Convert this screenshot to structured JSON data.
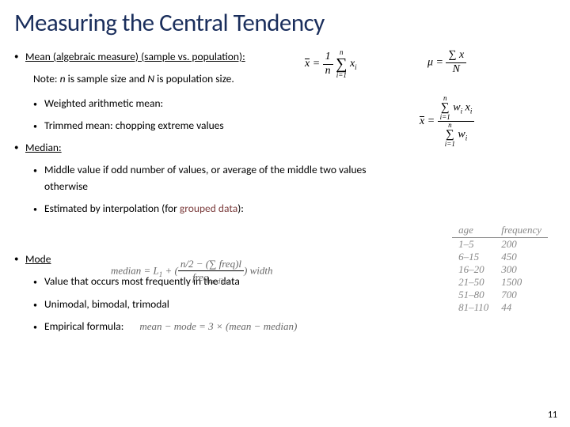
{
  "title": "Measuring the Central Tendency",
  "mean": {
    "heading": "Mean (algebraic measure) (sample vs. population):",
    "note_prefix": "Note: ",
    "note_n": "n",
    "note_mid": " is sample size and ",
    "note_N": "N",
    "note_end": " is population size.",
    "sub1": "Weighted arithmetic mean:",
    "sub2": "Trimmed mean: chopping extreme values"
  },
  "median": {
    "heading": "Median:",
    "sub1": "Middle value if odd number of values, or average of the middle two values otherwise",
    "sub2_a": "Estimated by interpolation (for ",
    "sub2_b": "grouped data",
    "sub2_c": "):"
  },
  "mode": {
    "heading": "Mode",
    "sub1": "Value that occurs most frequently in the data",
    "sub2": "Unimodal, bimodal, trimodal",
    "sub3": "Empirical formula:"
  },
  "formulas": {
    "sample_mean": {
      "lhs": "x",
      "eq": "=",
      "frac_num": "1",
      "frac_den": "n",
      "sum_top": "n",
      "sum_bot": "i=1",
      "term": "x",
      "term_sub": "i"
    },
    "pop_mean": {
      "lhs": "μ",
      "eq": "=",
      "sum_term": "x",
      "frac_den": "N"
    },
    "weighted": {
      "lhs": "x",
      "num_top": "n",
      "num_bot": "i=1",
      "num_term": "w",
      "num_sub": "i",
      "num_term2": "x",
      "num_sub2": "i",
      "den_top": "n",
      "den_bot": "i=1",
      "den_term": "w",
      "den_sub": "i"
    },
    "median_interp": "median = L₁ + ((n/2 − (∑ freq)l) / freq_median) width",
    "empirical": "mean − mode = 3 × (mean − median)"
  },
  "table": {
    "h1": "age",
    "h2": "frequency",
    "rows": [
      [
        "1–5",
        "200"
      ],
      [
        "6–15",
        "450"
      ],
      [
        "16–20",
        "300"
      ],
      [
        "21–50",
        "1500"
      ],
      [
        "51–80",
        "700"
      ],
      [
        "81–110",
        "44"
      ]
    ]
  },
  "page": "11"
}
